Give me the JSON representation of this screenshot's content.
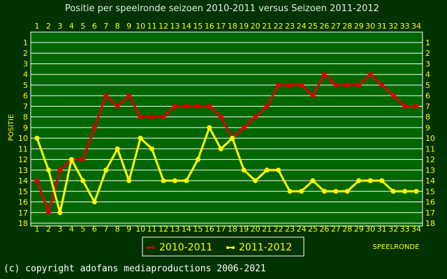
{
  "colors": {
    "background": "#003300",
    "plot_background": "#006600",
    "grid": "#ffffff",
    "tick_text": "#ffff00",
    "title_text": "#e8e8e8",
    "series_2010": "#dd0000",
    "series_2011": "#ffff00"
  },
  "footer": {
    "copyright": "(c) copyright adofans mediaproductions 2006-2021"
  },
  "chart_data": {
    "type": "line",
    "title": "Positie per speelronde seizoen 2010-2011 versus Seizoen 2011-2012",
    "xlabel": "SPEELRONDE",
    "ylabel": "POSITIE",
    "xlim": [
      1,
      34
    ],
    "ylim": [
      1,
      18
    ],
    "y_inverted": true,
    "grid": true,
    "legend_position": "bottom",
    "x": [
      1,
      2,
      3,
      4,
      5,
      6,
      7,
      8,
      9,
      10,
      11,
      12,
      13,
      14,
      15,
      16,
      17,
      18,
      19,
      20,
      21,
      22,
      23,
      24,
      25,
      26,
      27,
      28,
      29,
      30,
      31,
      32,
      33,
      34
    ],
    "y_ticks": [
      1,
      2,
      3,
      4,
      5,
      6,
      7,
      8,
      9,
      10,
      11,
      12,
      13,
      14,
      15,
      16,
      17,
      18
    ],
    "series": [
      {
        "name": "2010-2011",
        "color": "#dd0000",
        "values": [
          14,
          17,
          13,
          12,
          12,
          9,
          6,
          7,
          6,
          8,
          8,
          8,
          7,
          7,
          7,
          7,
          8,
          10,
          9,
          8,
          7,
          5,
          5,
          5,
          6,
          4,
          5,
          5,
          5,
          4,
          5,
          6,
          7,
          7
        ]
      },
      {
        "name": "2011-2012",
        "color": "#ffff00",
        "values": [
          10,
          13,
          17,
          12,
          14,
          16,
          13,
          11,
          14,
          10,
          11,
          14,
          14,
          14,
          12,
          9,
          11,
          10,
          13,
          14,
          13,
          13,
          15,
          15,
          14,
          15,
          15,
          15,
          14,
          14,
          14,
          15,
          15,
          15
        ]
      }
    ]
  }
}
